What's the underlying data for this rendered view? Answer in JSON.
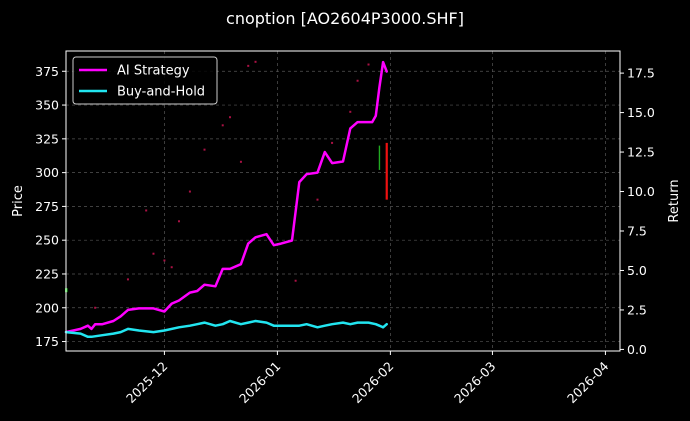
{
  "chart_data": {
    "type": "line",
    "title": "cnoption [AO2604P3000.SHF]",
    "xlabel": "",
    "ylabel": "Price",
    "y2label": "Return",
    "x_ticks": [
      "2025-12",
      "2026-01",
      "2026-02",
      "2026-03",
      "2026-04"
    ],
    "x_range": [
      "2025-11-04",
      "2026-04-05"
    ],
    "y_ticks": [
      175,
      200,
      225,
      250,
      275,
      300,
      325,
      350,
      375
    ],
    "ylim": [
      168,
      390
    ],
    "y2_ticks": [
      "0.0",
      "2.5",
      "5.0",
      "7.5",
      "10.0",
      "12.5",
      "15.0",
      "17.5"
    ],
    "y2lim": [
      -0.1,
      18.9
    ],
    "grid": true,
    "legend_position": "upper-left",
    "background_color": "#000000",
    "series": [
      {
        "name": "AI Strategy",
        "color": "#ff00ff",
        "axis": "right",
        "x": [
          "2025-11-04",
          "2025-11-08",
          "2025-11-10",
          "2025-11-11",
          "2025-11-12",
          "2025-11-14",
          "2025-11-17",
          "2025-11-19",
          "2025-11-21",
          "2025-11-24",
          "2025-11-26",
          "2025-11-28",
          "2025-12-01",
          "2025-12-03",
          "2025-12-05",
          "2025-12-08",
          "2025-12-10",
          "2025-12-12",
          "2025-12-15",
          "2025-12-17",
          "2025-12-19",
          "2025-12-22",
          "2025-12-24",
          "2025-12-26",
          "2025-12-29",
          "2025-12-31",
          "2026-01-02",
          "2026-01-05",
          "2026-01-07",
          "2026-01-09",
          "2026-01-12",
          "2026-01-14",
          "2026-01-16",
          "2026-01-19",
          "2026-01-21",
          "2026-01-23",
          "2026-01-26",
          "2026-01-27",
          "2026-01-28",
          "2026-01-29",
          "2026-01-30",
          "2026-01-31"
        ],
        "values": [
          1.1,
          1.3,
          1.5,
          1.3,
          1.6,
          1.6,
          1.8,
          2.1,
          2.5,
          2.6,
          2.6,
          2.6,
          2.4,
          2.9,
          3.1,
          3.6,
          3.7,
          4.1,
          4.0,
          5.1,
          5.1,
          5.4,
          6.7,
          7.1,
          7.3,
          6.6,
          6.7,
          6.9,
          10.6,
          11.1,
          11.2,
          12.5,
          11.8,
          11.9,
          14.0,
          14.4,
          14.4,
          14.4,
          14.8,
          16.6,
          18.2,
          17.6
        ]
      },
      {
        "name": "Buy-and-Hold",
        "color": "#22e5f0",
        "axis": "right",
        "x": [
          "2025-11-04",
          "2025-11-08",
          "2025-11-10",
          "2025-11-11",
          "2025-11-14",
          "2025-11-17",
          "2025-11-19",
          "2025-11-21",
          "2025-11-24",
          "2025-11-28",
          "2025-12-01",
          "2025-12-05",
          "2025-12-08",
          "2025-12-10",
          "2025-12-12",
          "2025-12-15",
          "2025-12-17",
          "2025-12-19",
          "2025-12-22",
          "2025-12-24",
          "2025-12-26",
          "2025-12-29",
          "2025-12-31",
          "2026-01-02",
          "2026-01-05",
          "2026-01-07",
          "2026-01-09",
          "2026-01-12",
          "2026-01-14",
          "2026-01-16",
          "2026-01-19",
          "2026-01-21",
          "2026-01-23",
          "2026-01-26",
          "2026-01-28",
          "2026-01-29",
          "2026-01-30",
          "2026-01-31"
        ],
        "values": [
          1.1,
          1.0,
          0.8,
          0.8,
          0.9,
          1.0,
          1.1,
          1.3,
          1.2,
          1.1,
          1.2,
          1.4,
          1.5,
          1.6,
          1.7,
          1.5,
          1.6,
          1.8,
          1.6,
          1.7,
          1.8,
          1.7,
          1.5,
          1.5,
          1.5,
          1.5,
          1.6,
          1.4,
          1.5,
          1.6,
          1.7,
          1.6,
          1.7,
          1.7,
          1.6,
          1.5,
          1.4,
          1.6
        ]
      }
    ],
    "markers": [
      {
        "kind": "buy",
        "color": "#22cc22",
        "x": "2025-11-04",
        "y": 213
      },
      {
        "kind": "bar-green",
        "color": "#22aa22",
        "x": "2026-01-29",
        "y_low": 302,
        "y_high": 320
      },
      {
        "kind": "bar-red",
        "color": "#ee1111",
        "x": "2026-01-31",
        "y_low": 280,
        "y_high": 322
      }
    ],
    "price_points": [
      {
        "x": "2025-11-12",
        "y": 200
      },
      {
        "x": "2025-11-21",
        "y": 221
      },
      {
        "x": "2025-11-26",
        "y": 272
      },
      {
        "x": "2025-11-28",
        "y": 240
      },
      {
        "x": "2025-12-01",
        "y": 235
      },
      {
        "x": "2025-12-03",
        "y": 230
      },
      {
        "x": "2025-12-05",
        "y": 264
      },
      {
        "x": "2025-12-08",
        "y": 286
      },
      {
        "x": "2025-12-12",
        "y": 317
      },
      {
        "x": "2025-12-17",
        "y": 335
      },
      {
        "x": "2025-12-19",
        "y": 341
      },
      {
        "x": "2025-12-22",
        "y": 308
      },
      {
        "x": "2025-12-24",
        "y": 379
      },
      {
        "x": "2025-12-26",
        "y": 382
      },
      {
        "x": "2026-01-06",
        "y": 220
      },
      {
        "x": "2026-01-12",
        "y": 280
      },
      {
        "x": "2026-01-16",
        "y": 322
      },
      {
        "x": "2026-01-21",
        "y": 345
      },
      {
        "x": "2026-01-23",
        "y": 368
      },
      {
        "x": "2026-01-26",
        "y": 380
      }
    ]
  }
}
